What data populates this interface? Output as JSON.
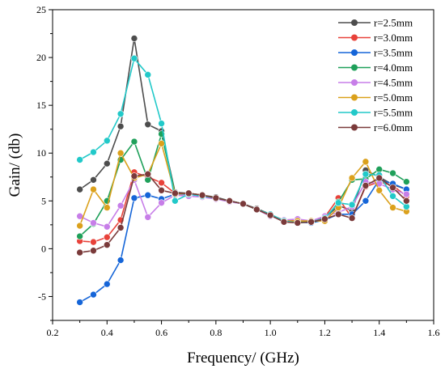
{
  "chart_data": {
    "type": "line",
    "xlabel": "Frequency/ (GHz)",
    "ylabel": "Gain/ (db)",
    "xlim": [
      0.2,
      1.6
    ],
    "ylim": [
      -7.5,
      25
    ],
    "xticks": [
      0.2,
      0.4,
      0.6,
      0.8,
      1.0,
      1.2,
      1.4,
      1.6
    ],
    "xtick_labels": [
      "0.2",
      "0.4",
      "0.6",
      "0.8",
      "1.0",
      "1.2",
      "1.4",
      "1.6"
    ],
    "yticks": [
      -5,
      0,
      5,
      10,
      15,
      20,
      25
    ],
    "ytick_labels": [
      "-5",
      "0",
      "5",
      "10",
      "15",
      "20",
      "25"
    ],
    "grid": false,
    "legend_position": "top-right",
    "x": [
      0.3,
      0.35,
      0.4,
      0.45,
      0.5,
      0.55,
      0.6,
      0.65,
      0.7,
      0.75,
      0.8,
      0.85,
      0.9,
      0.95,
      1.0,
      1.05,
      1.1,
      1.15,
      1.2,
      1.25,
      1.3,
      1.35,
      1.4,
      1.45,
      1.5
    ],
    "series": [
      {
        "name": "r=2.5mm",
        "color": "#4d4d4d",
        "values": [
          6.2,
          7.2,
          8.9,
          12.8,
          22.0,
          13.0,
          12.3,
          5.9,
          5.8,
          5.6,
          5.4,
          5.0,
          4.7,
          4.2,
          3.6,
          2.9,
          2.8,
          2.8,
          3.2,
          4.5,
          4.0,
          8.2,
          7.5,
          6.7,
          6.2
        ]
      },
      {
        "name": "r=3.0mm",
        "color": "#e8423a",
        "values": [
          0.8,
          0.7,
          1.2,
          3.0,
          8.0,
          7.5,
          6.9,
          5.8,
          5.8,
          5.6,
          5.3,
          5.0,
          4.7,
          4.1,
          3.5,
          3.0,
          2.9,
          2.8,
          3.3,
          5.3,
          3.2,
          6.5,
          7.0,
          6.6,
          5.5
        ]
      },
      {
        "name": "r=3.5mm",
        "color": "#1565d8",
        "values": [
          -5.6,
          -4.8,
          -3.7,
          -1.2,
          5.3,
          5.6,
          5.2,
          5.7,
          5.7,
          5.5,
          5.3,
          5.0,
          4.7,
          4.1,
          3.5,
          2.9,
          2.8,
          2.7,
          3.0,
          3.6,
          3.6,
          5.0,
          7.2,
          6.8,
          6.2
        ]
      },
      {
        "name": "r=4.0mm",
        "color": "#1fa05a",
        "values": [
          1.3,
          2.6,
          5.0,
          9.3,
          11.2,
          7.2,
          12.0,
          5.8,
          5.8,
          5.6,
          5.3,
          5.0,
          4.7,
          4.1,
          3.6,
          2.9,
          2.8,
          2.8,
          3.0,
          4.9,
          7.2,
          7.3,
          8.3,
          7.9,
          7.0
        ]
      },
      {
        "name": "r=4.5mm",
        "color": "#c77ee8",
        "values": [
          3.4,
          2.7,
          2.3,
          4.5,
          7.2,
          3.3,
          4.8,
          5.6,
          5.5,
          5.4,
          5.2,
          4.9,
          4.7,
          4.1,
          3.4,
          3.0,
          3.1,
          2.9,
          3.4,
          3.8,
          4.4,
          7.0,
          6.8,
          6.2,
          5.7
        ]
      },
      {
        "name": "r=5.0mm",
        "color": "#dba11c",
        "values": [
          2.4,
          6.2,
          4.3,
          10.0,
          7.4,
          7.8,
          11.0,
          5.7,
          5.8,
          5.6,
          5.3,
          5.0,
          4.7,
          4.1,
          3.5,
          2.9,
          2.9,
          2.9,
          2.9,
          4.3,
          7.4,
          9.1,
          6.1,
          4.3,
          3.9
        ]
      },
      {
        "name": "r=5.5mm",
        "color": "#22c9c9",
        "values": [
          9.3,
          10.1,
          11.3,
          14.1,
          19.9,
          18.2,
          13.1,
          5.0,
          5.7,
          5.5,
          5.3,
          5.0,
          4.7,
          4.1,
          3.6,
          2.9,
          2.7,
          2.8,
          3.2,
          4.8,
          4.6,
          7.8,
          7.7,
          5.5,
          4.4
        ]
      },
      {
        "name": "r=6.0mm",
        "color": "#7a3a3a",
        "values": [
          -0.4,
          -0.2,
          0.4,
          2.2,
          7.6,
          7.8,
          6.1,
          5.8,
          5.8,
          5.6,
          5.3,
          5.0,
          4.7,
          4.1,
          3.5,
          2.8,
          2.7,
          2.8,
          3.1,
          3.6,
          3.2,
          6.6,
          7.4,
          6.4,
          5.0
        ]
      }
    ]
  }
}
